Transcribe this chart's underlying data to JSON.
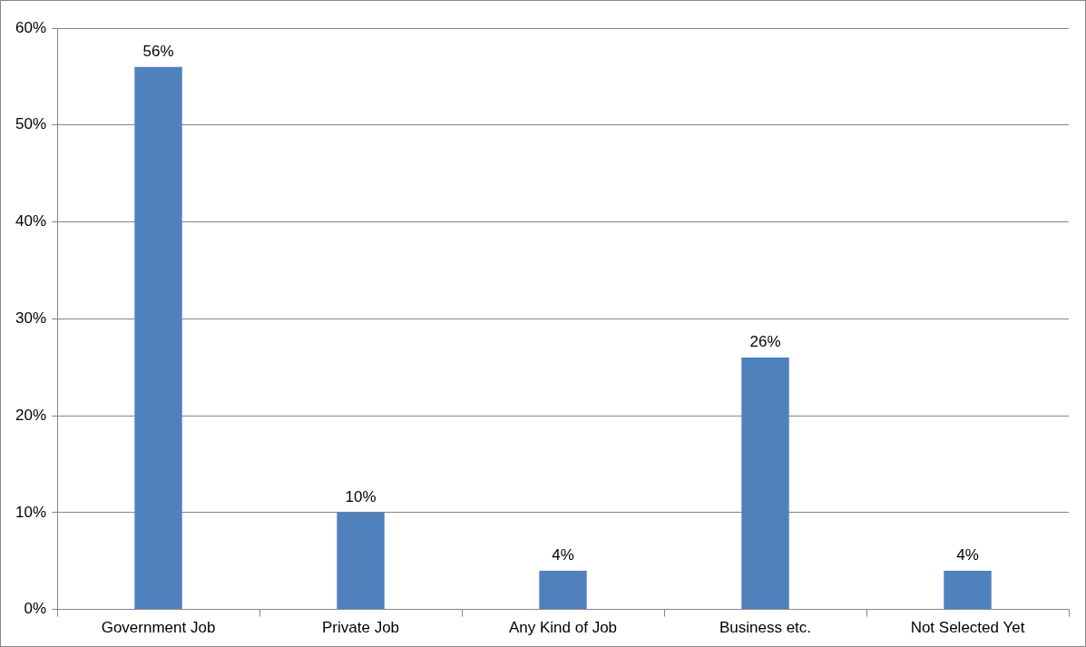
{
  "chart_data": {
    "type": "bar",
    "categories": [
      "Government Job",
      "Private Job",
      "Any Kind of Job",
      "Business etc.",
      "Not Selected Yet"
    ],
    "values": [
      56,
      10,
      4,
      26,
      4
    ],
    "color": "#4f81bd",
    "value_labels": [
      "56%",
      "10%",
      "4%",
      "26%",
      "4%"
    ],
    "ylim": [
      0,
      60
    ],
    "yticks": [
      {
        "value": 0,
        "label": "0%"
      },
      {
        "value": 10,
        "label": "10%"
      },
      {
        "value": 20,
        "label": "20%"
      },
      {
        "value": 30,
        "label": "30%"
      },
      {
        "value": 40,
        "label": "40%"
      },
      {
        "value": 50,
        "label": "50%"
      },
      {
        "value": 60,
        "label": "60%"
      }
    ],
    "grid": "y",
    "legend": false
  }
}
